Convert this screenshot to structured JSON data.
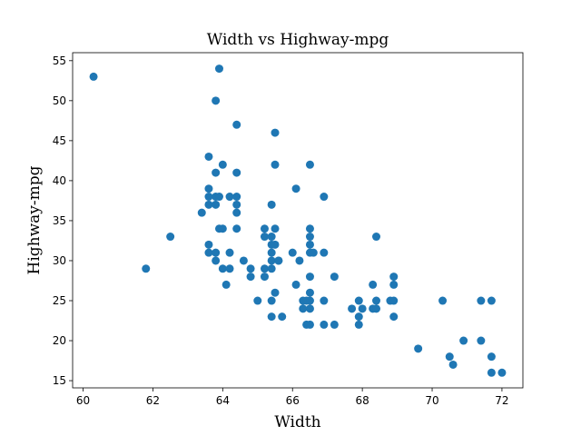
{
  "chart_data": {
    "type": "scatter",
    "title": "Width vs Highway-mpg",
    "xlabel": "Width",
    "ylabel": "Highway-mpg",
    "xlim": [
      59.7,
      72.6
    ],
    "ylim": [
      14.1,
      56.0
    ],
    "xticks": [
      60,
      62,
      64,
      66,
      68,
      70,
      72
    ],
    "yticks": [
      15,
      20,
      25,
      30,
      35,
      40,
      45,
      50,
      55
    ],
    "grid": false,
    "marker_color": "#1f77b4",
    "points": [
      [
        60.3,
        53
      ],
      [
        61.8,
        29
      ],
      [
        62.5,
        33
      ],
      [
        63.4,
        36
      ],
      [
        63.6,
        43
      ],
      [
        63.6,
        39
      ],
      [
        63.6,
        38
      ],
      [
        63.6,
        37
      ],
      [
        63.6,
        32
      ],
      [
        63.6,
        31
      ],
      [
        63.8,
        50
      ],
      [
        63.8,
        41
      ],
      [
        63.8,
        38
      ],
      [
        63.8,
        37
      ],
      [
        63.8,
        31
      ],
      [
        63.8,
        30
      ],
      [
        63.9,
        54
      ],
      [
        63.9,
        38
      ],
      [
        63.9,
        34
      ],
      [
        64.0,
        42
      ],
      [
        64.0,
        34
      ],
      [
        64.0,
        29
      ],
      [
        64.1,
        27
      ],
      [
        64.2,
        38
      ],
      [
        64.2,
        31
      ],
      [
        64.2,
        29
      ],
      [
        64.4,
        47
      ],
      [
        64.4,
        41
      ],
      [
        64.4,
        38
      ],
      [
        64.4,
        37
      ],
      [
        64.4,
        36
      ],
      [
        64.4,
        34
      ],
      [
        64.6,
        30
      ],
      [
        64.8,
        29
      ],
      [
        64.8,
        28
      ],
      [
        65.0,
        25
      ],
      [
        65.2,
        34
      ],
      [
        65.2,
        33
      ],
      [
        65.2,
        29
      ],
      [
        65.2,
        28
      ],
      [
        65.4,
        37
      ],
      [
        65.4,
        33
      ],
      [
        65.4,
        32
      ],
      [
        65.4,
        31
      ],
      [
        65.4,
        30
      ],
      [
        65.4,
        29
      ],
      [
        65.4,
        25
      ],
      [
        65.4,
        23
      ],
      [
        65.5,
        46
      ],
      [
        65.5,
        42
      ],
      [
        65.5,
        34
      ],
      [
        65.5,
        32
      ],
      [
        65.5,
        26
      ],
      [
        65.6,
        30
      ],
      [
        65.6,
        30
      ],
      [
        65.7,
        23
      ],
      [
        66.0,
        31
      ],
      [
        66.1,
        39
      ],
      [
        66.1,
        27
      ],
      [
        66.2,
        30
      ],
      [
        66.3,
        25
      ],
      [
        66.3,
        24
      ],
      [
        66.4,
        25
      ],
      [
        66.4,
        22
      ],
      [
        66.5,
        42
      ],
      [
        66.5,
        34
      ],
      [
        66.5,
        33
      ],
      [
        66.5,
        32
      ],
      [
        66.5,
        31
      ],
      [
        66.5,
        28
      ],
      [
        66.5,
        26
      ],
      [
        66.5,
        25
      ],
      [
        66.5,
        24
      ],
      [
        66.5,
        22
      ],
      [
        66.6,
        31
      ],
      [
        66.9,
        38
      ],
      [
        66.9,
        31
      ],
      [
        66.9,
        25
      ],
      [
        66.9,
        22
      ],
      [
        67.2,
        28
      ],
      [
        67.2,
        22
      ],
      [
        67.7,
        24
      ],
      [
        67.9,
        25
      ],
      [
        67.9,
        23
      ],
      [
        67.9,
        22
      ],
      [
        68.0,
        24
      ],
      [
        68.3,
        27
      ],
      [
        68.3,
        24
      ],
      [
        68.4,
        33
      ],
      [
        68.4,
        25
      ],
      [
        68.4,
        24
      ],
      [
        68.8,
        25
      ],
      [
        68.9,
        28
      ],
      [
        68.9,
        27
      ],
      [
        68.9,
        25
      ],
      [
        68.9,
        23
      ],
      [
        69.6,
        19
      ],
      [
        70.3,
        25
      ],
      [
        70.5,
        18
      ],
      [
        70.6,
        17
      ],
      [
        70.9,
        20
      ],
      [
        71.4,
        25
      ],
      [
        71.4,
        20
      ],
      [
        71.7,
        25
      ],
      [
        71.7,
        18
      ],
      [
        71.7,
        16
      ],
      [
        72.0,
        16
      ]
    ]
  }
}
